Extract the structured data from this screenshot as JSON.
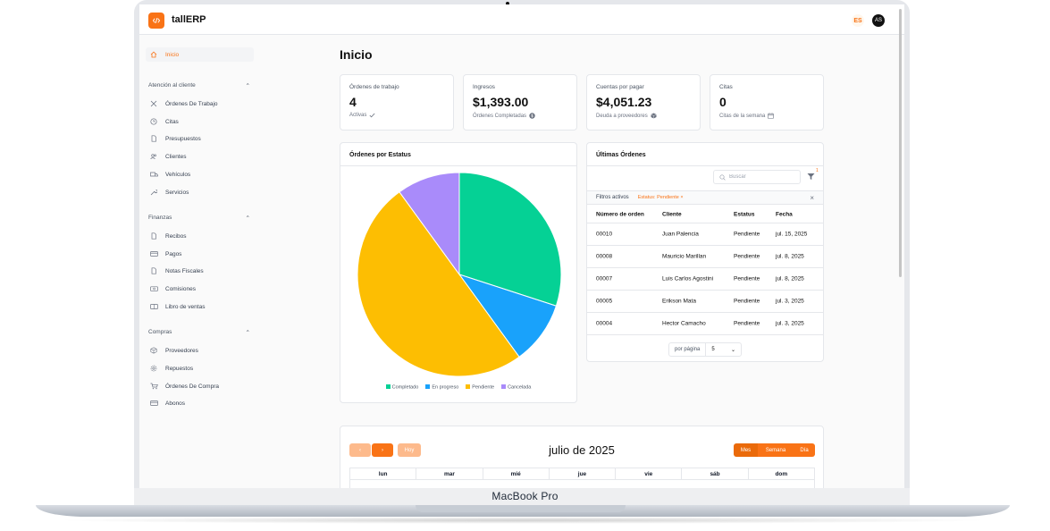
{
  "app": {
    "brand": "tallERP",
    "language": "ES",
    "user_initials": "AS"
  },
  "device_label": "MacBook Pro",
  "sidebar": {
    "home": "Inicio",
    "sections": [
      {
        "title": "Atención al cliente",
        "items": [
          "Órdenes De Trabajo",
          "Citas",
          "Presupuestos",
          "Clientes",
          "Vehículos",
          "Servicios"
        ]
      },
      {
        "title": "Finanzas",
        "items": [
          "Recibos",
          "Pagos",
          "Notas Fiscales",
          "Comisiones",
          "Libro de ventas"
        ]
      },
      {
        "title": "Compras",
        "items": [
          "Proveedores",
          "Repuestos",
          "Órdenes De Compra",
          "Abonos"
        ]
      }
    ]
  },
  "page": {
    "title": "Inicio"
  },
  "stats": [
    {
      "label": "Órdenes de trabajo",
      "value": "4",
      "sub": "Activas",
      "icon": "check-icon"
    },
    {
      "label": "Ingresos",
      "value": "$1,393.00",
      "sub": "Órdenes Completadas",
      "icon": "dollar-icon"
    },
    {
      "label": "Cuentas por pagar",
      "value": "$4,051.23",
      "sub": "Deuda a proveedores",
      "icon": "box-icon"
    },
    {
      "label": "Citas",
      "value": "0",
      "sub": "Citas de la semana",
      "icon": "calendar-icon"
    }
  ],
  "status_chart": {
    "title": "Órdenes por Estatus",
    "chart_data": {
      "type": "pie",
      "categories": [
        "Completado",
        "En progreso",
        "Pendiente",
        "Cancelada"
      ],
      "values": [
        30,
        10,
        50,
        10
      ],
      "colors": [
        "#05d195",
        "#19a2fb",
        "#fdbe02",
        "#a98bfa"
      ],
      "legend": "bottom"
    }
  },
  "latest_orders": {
    "title": "Últimas Órdenes",
    "search_placeholder": "Buscar",
    "filter_count": "1",
    "active_filters_label": "Filtros activos",
    "active_filter": "Estatus: Pendiente",
    "columns": [
      "Número de orden",
      "Cliente",
      "Estatus",
      "Fecha"
    ],
    "rows": [
      [
        "00010",
        "Juan Palencia",
        "Pendiente",
        "jul. 15, 2025"
      ],
      [
        "00008",
        "Mauricio Marillan",
        "Pendiente",
        "jul. 8, 2025"
      ],
      [
        "00007",
        "Luis Carlos Agostini",
        "Pendiente",
        "jul. 8, 2025"
      ],
      [
        "00005",
        "Erikson Mata",
        "Pendiente",
        "jul. 3, 2025"
      ],
      [
        "00004",
        "Hector Camacho",
        "Pendiente",
        "jul. 3, 2025"
      ]
    ],
    "per_page_label": "por página",
    "per_page_value": "5"
  },
  "calendar": {
    "title": "julio de 2025",
    "today_label": "Hoy",
    "views": [
      "Mes",
      "Semana",
      "Día"
    ],
    "active_view": "Mes",
    "weekdays": [
      "lun",
      "mar",
      "mié",
      "jue",
      "vie",
      "sáb",
      "dom"
    ]
  },
  "colors": {
    "accent": "#f97316"
  }
}
